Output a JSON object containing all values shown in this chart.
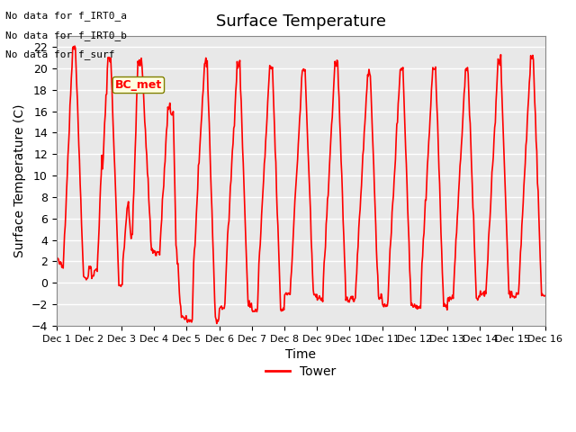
{
  "title": "Surface Temperature",
  "xlabel": "Time",
  "ylabel": "Surface Temperature (C)",
  "ylim": [
    -4,
    23
  ],
  "yticks": [
    -4,
    -2,
    0,
    2,
    4,
    6,
    8,
    10,
    12,
    14,
    16,
    18,
    20,
    22
  ],
  "xlim_days": [
    0,
    15
  ],
  "xtick_labels": [
    "Dec 1",
    "Dec 2",
    "Dec 3",
    "Dec 4",
    "Dec 5",
    "Dec 6",
    "Dec 7",
    "Dec 8",
    "Dec 9",
    "Dec 10",
    "Dec 11",
    "Dec 12",
    "Dec 13",
    "Dec 14",
    "Dec 15",
    "Dec 16"
  ],
  "line_color": "#ff0000",
  "line_width": 1.2,
  "background_color": "#ffffff",
  "plot_bg_color": "#e8e8e8",
  "grid_color": "#ffffff",
  "legend_label": "Tower",
  "annotations": [
    "No data for f_IRT0_a",
    "No data for f_IRT0_b",
    "No data for f_surf"
  ],
  "bc_met_label": "BC_met",
  "title_fontsize": 13,
  "axis_label_fontsize": 10,
  "tick_fontsize": 9
}
